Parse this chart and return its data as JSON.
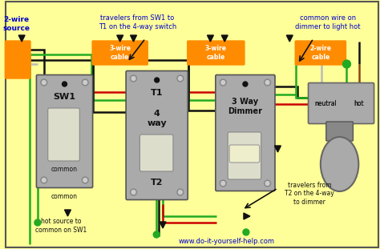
{
  "bg": "#FFFF99",
  "colors": {
    "black": "#111111",
    "green": "#22AA22",
    "red": "#CC0000",
    "white_wire": "#BBBBBB",
    "gray": "#AAAAAA",
    "orange": "#FF8C00",
    "blue_text": "#0000CC",
    "brown": "#8B4513",
    "dark_gray": "#666666",
    "light_gray": "#CCCCCC",
    "cream": "#FFFFCC"
  },
  "labels": {
    "source": "2-wire\nsource",
    "cable1": "3-wire\ncable",
    "cable2": "3-wire\ncable",
    "cable3": "2-wire\ncable",
    "travelers_sw1": "travelers from SW1 to\nT1 on the 4-way switch",
    "common_wire": "common wire on\ndimmer to light hot",
    "sw1": "SW1",
    "common": "common",
    "t1": "T1",
    "t2": "T2",
    "way4": "4\nway",
    "dimmer": "3 Way\nDimmer",
    "neutral": "neutral",
    "hot": "hot",
    "hot_source": "hot source to\ncommon on SW1",
    "travelers_t2": "travelers from\nT2 on the 4-way\nto dimmer",
    "website": "www.do-it-yourself-help.com"
  }
}
